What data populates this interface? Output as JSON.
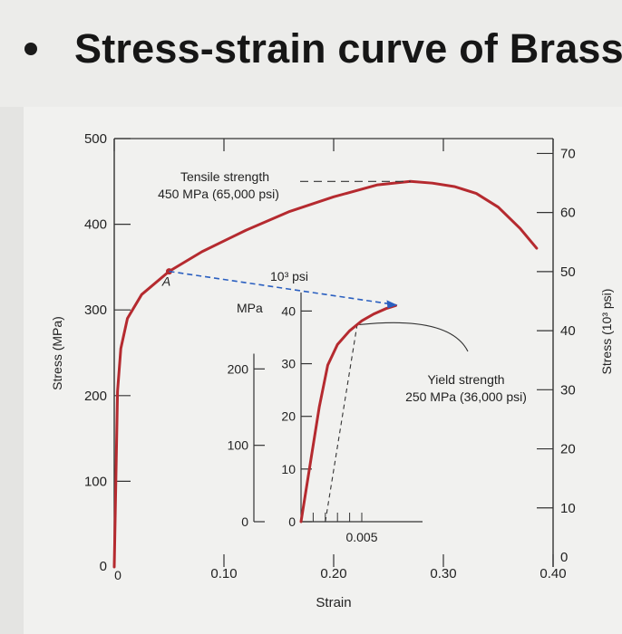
{
  "header": {
    "bullet": "•",
    "title": "Stress-strain curve of Brass:"
  },
  "chart_data": {
    "type": "line",
    "xlabel": "Strain",
    "ylabel": "Stress (MPa)",
    "y2label": "Stress (10³ psi)",
    "xlim": [
      0,
      0.4
    ],
    "ylim": [
      0,
      500
    ],
    "x_ticks": [
      "0",
      "0.10",
      "0.20",
      "0.30",
      "0.40"
    ],
    "y_ticks": [
      "0",
      "100",
      "200",
      "300",
      "400",
      "500"
    ],
    "y2_ticks": [
      "0",
      "10",
      "20",
      "30",
      "40",
      "50",
      "60",
      "70"
    ],
    "series": [
      {
        "x": [
          0,
          0.003,
          0.006,
          0.012,
          0.025,
          0.05,
          0.08,
          0.12,
          0.16,
          0.2,
          0.24,
          0.27,
          0.29,
          0.31,
          0.33,
          0.35,
          0.37,
          0.385
        ],
        "y": [
          0,
          205,
          255,
          290,
          318,
          345,
          368,
          393,
          415,
          432,
          446,
          450,
          448,
          444,
          436,
          420,
          395,
          372
        ]
      }
    ],
    "point_label": "A",
    "point_A": {
      "x": 0.05,
      "y": 345
    },
    "annotations": {
      "tensile_line1": "Tensile strength",
      "tensile_line2": "450 MPa (65,000 psi)",
      "yield_line1": "Yield strength",
      "yield_line2": "250 MPa (36,000 psi)",
      "inset_mpa": "MPa",
      "inset_psi": "10³ psi",
      "offset_strain": "0.005"
    },
    "inset": {
      "xlim": [
        0,
        0.01
      ],
      "ylim": [
        0,
        300
      ],
      "mpa_ticks": [
        "0",
        "100",
        "200"
      ],
      "psi_ticks": [
        "0",
        "10",
        "20",
        "30",
        "40"
      ],
      "x": [
        0,
        0.0008,
        0.0015,
        0.0022,
        0.003,
        0.004,
        0.005,
        0.006,
        0.007,
        0.0078
      ],
      "y": [
        0,
        80,
        150,
        205,
        232,
        250,
        263,
        272,
        279,
        283
      ]
    },
    "colors": {
      "curve": "#b52a2f",
      "dashed": "#333333",
      "arrow": "#2a5fc0"
    }
  }
}
